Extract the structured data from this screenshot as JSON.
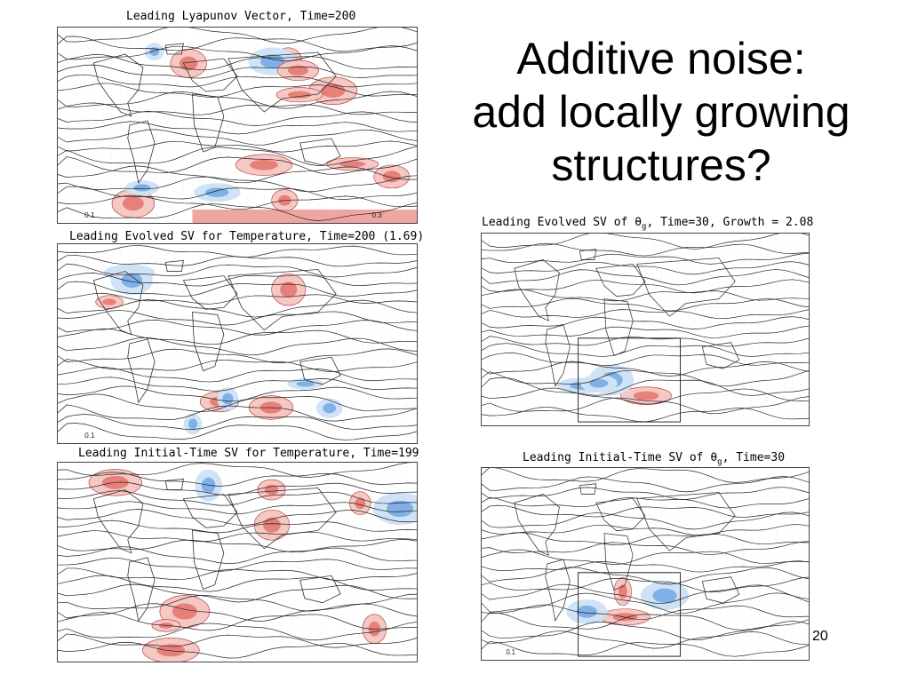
{
  "slide": {
    "title_lines": [
      "Additive noise:",
      "add locally growing",
      "structures?"
    ],
    "page_number": "20"
  },
  "panels": {
    "lyapunov": {
      "caption": "Leading Lyapunov Vector, Time=200",
      "contour_labels": [
        "0.1",
        "0.3"
      ]
    },
    "evolved_temp": {
      "caption": "Leading Evolved SV for Temperature, Time=200 (1.69)",
      "contour_labels": [
        "0.1"
      ]
    },
    "initial_temp": {
      "caption": "Leading Initial-Time SV for Temperature, Time=199",
      "contour_labels": []
    },
    "evolved_theta": {
      "caption_prefix": "Leading Evolved SV of ",
      "caption_symbol": "θ",
      "caption_sub": "g",
      "caption_suffix": ", Time=30, Growth =  2.08",
      "contour_labels": []
    },
    "initial_theta": {
      "caption_prefix": "Leading Initial-Time SV of ",
      "caption_symbol": "θ",
      "caption_sub": "g",
      "caption_suffix": ", Time=30",
      "contour_labels": [
        "0.1"
      ]
    }
  },
  "colors": {
    "positive_shading": "#e8807a",
    "positive_light": "#f6c8c4",
    "negative_shading": "#7fb0e6",
    "negative_light": "#cfe2f6",
    "contour": "#222222",
    "grid": "#cccccc"
  }
}
